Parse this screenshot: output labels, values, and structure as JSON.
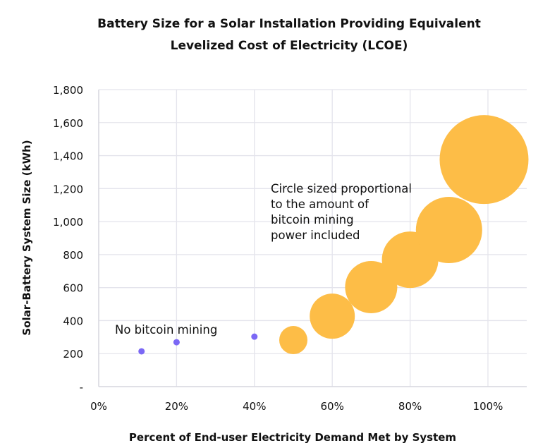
{
  "chart_data": {
    "type": "scatter",
    "title": [
      "Battery Size for a Solar Installation Providing Equivalent",
      "Levelized Cost of Electricity (LCOE)"
    ],
    "xlabel": "Percent of End-user Electricity Demand Met by System",
    "ylabel": "Solar-Battery System Size (kWh)",
    "xlim": [
      0,
      1.1
    ],
    "ylim": [
      0,
      1800
    ],
    "x_ticks": [
      0,
      0.2,
      0.4,
      0.6,
      0.8,
      1.0
    ],
    "x_tick_labels": [
      "0%",
      "20%",
      "40%",
      "60%",
      "80%",
      "100%"
    ],
    "y_ticks": [
      0,
      200,
      400,
      600,
      800,
      1000,
      1200,
      1400,
      1600,
      1800
    ],
    "y_tick_labels": [
      "-",
      "200",
      "400",
      "600",
      "800",
      "1,000",
      "1,200",
      "1,400",
      "1,600",
      "1,800"
    ],
    "grid": true,
    "colors": {
      "no_mining": "#7b68f5",
      "mining": "#fdbd47",
      "grid": "#e4e4ec"
    },
    "series": [
      {
        "group": "no_mining",
        "points": [
          {
            "x": 0.11,
            "y": 214
          },
          {
            "x": 0.2,
            "y": 269
          },
          {
            "x": 0.4,
            "y": 303
          }
        ]
      },
      {
        "group": "mining",
        "points": [
          {
            "x": 0.5,
            "y": 282,
            "size": 400
          },
          {
            "x": 0.6,
            "y": 427,
            "size": 1024
          },
          {
            "x": 0.7,
            "y": 603,
            "size": 1369
          },
          {
            "x": 0.8,
            "y": 769,
            "size": 1600
          },
          {
            "x": 0.9,
            "y": 949,
            "size": 2209
          },
          {
            "x": 0.99,
            "y": 1376,
            "size": 3969
          }
        ]
      }
    ],
    "annotations": {
      "no_mining": "No bitcoin mining",
      "mining": [
        "Circle sized proportional",
        "to the amount of",
        "bitcoin mining",
        "power included"
      ]
    }
  }
}
